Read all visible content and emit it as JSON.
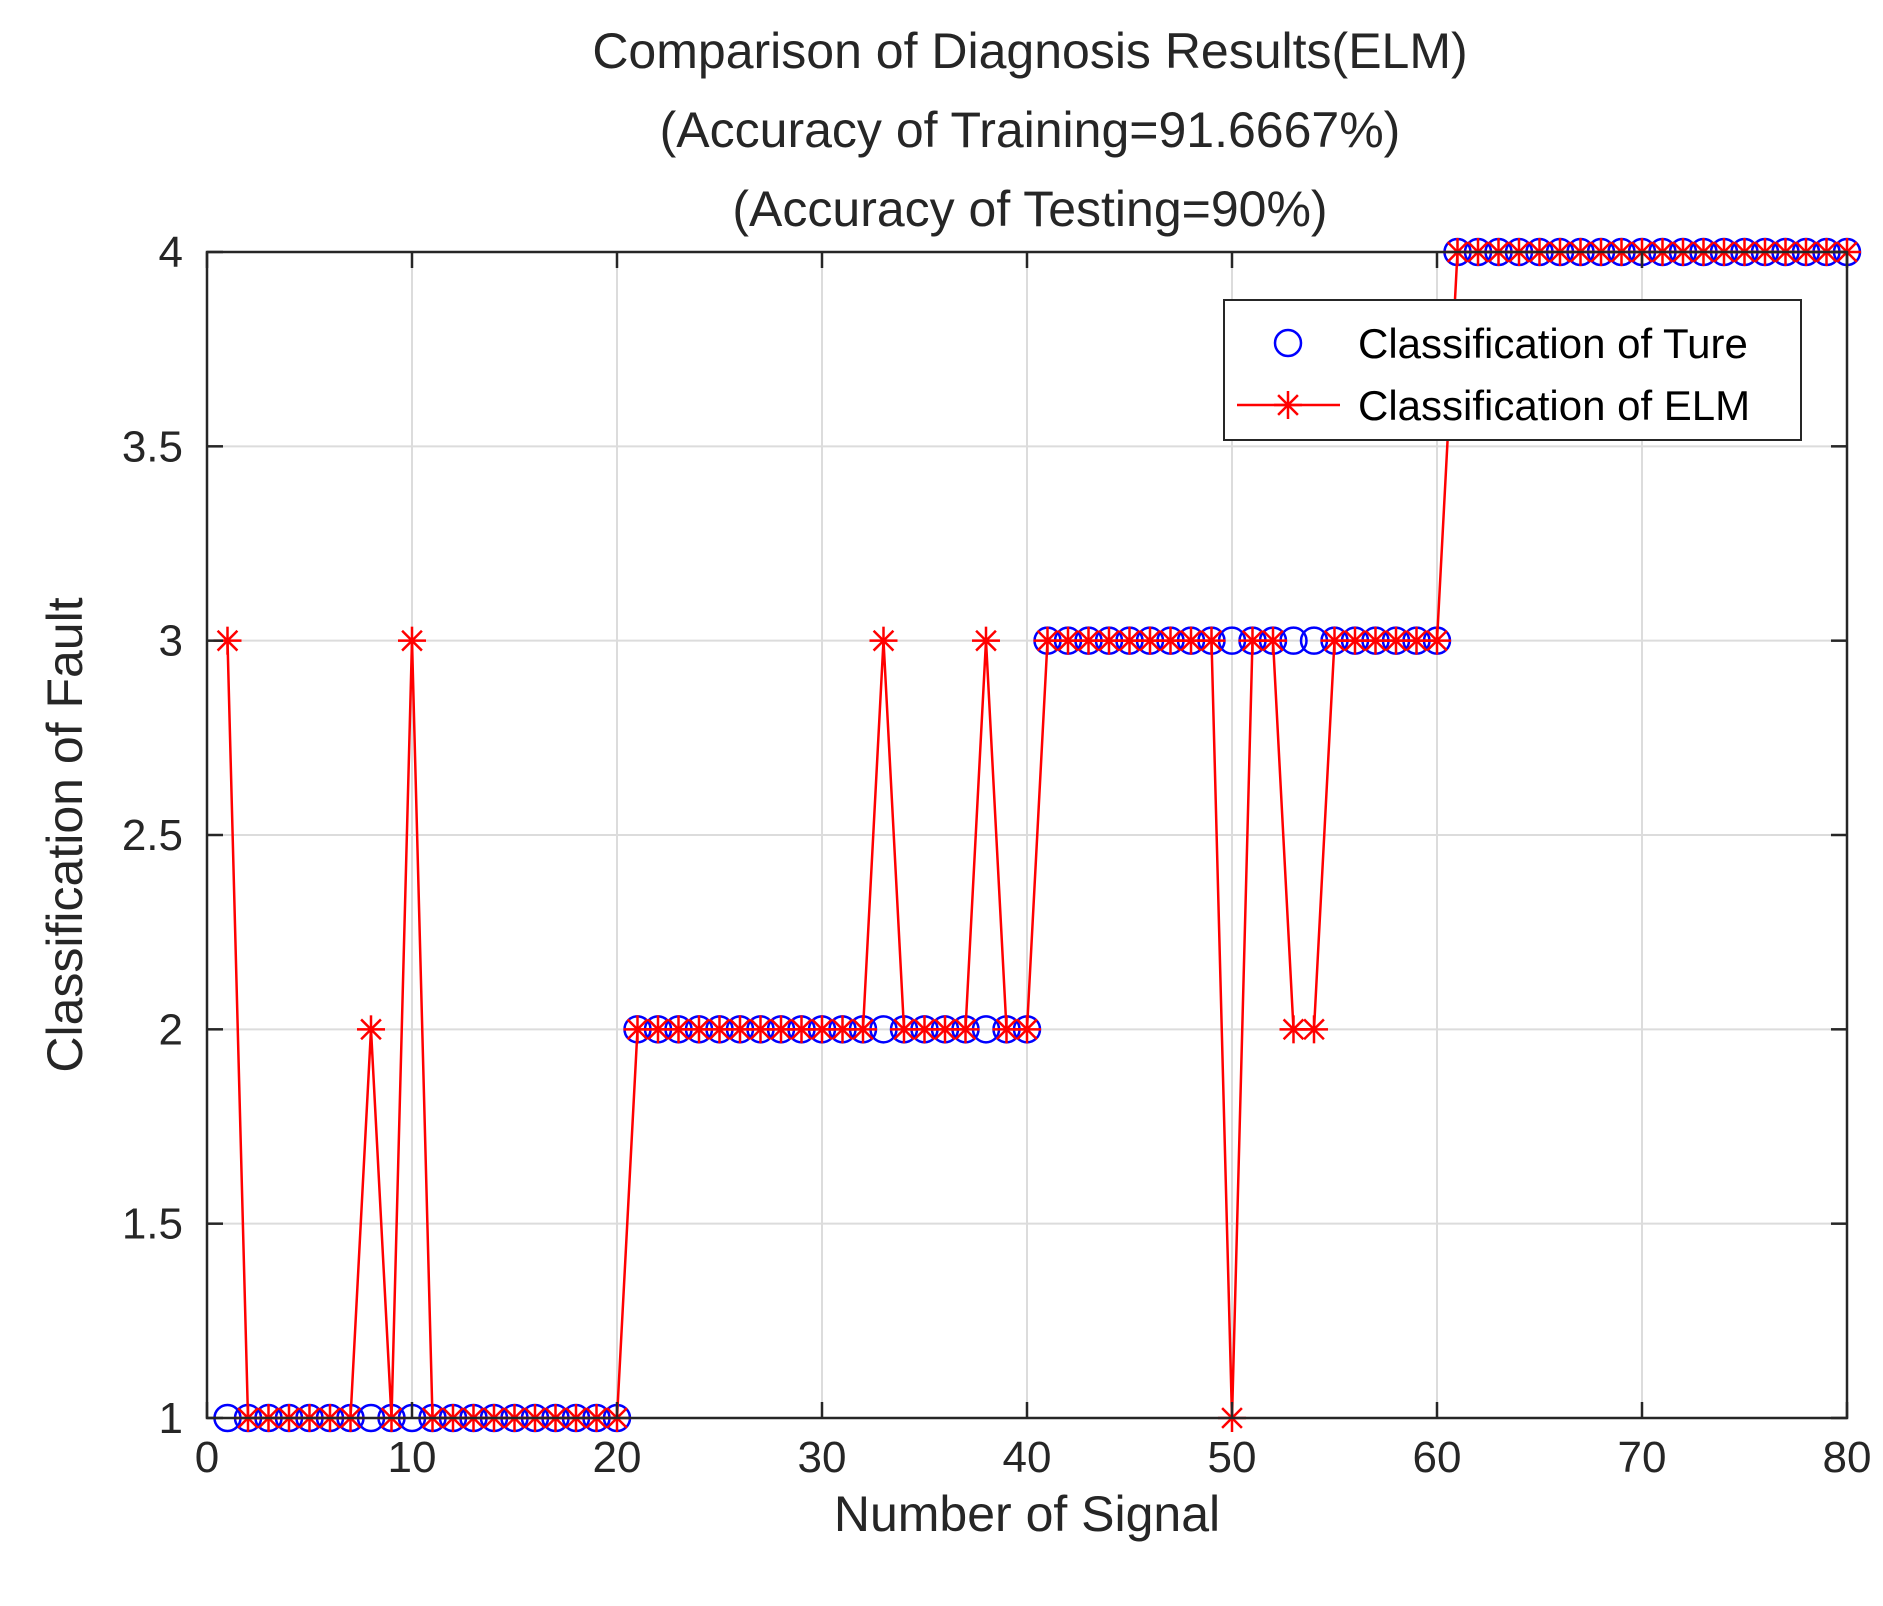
{
  "chart_data": {
    "type": "line",
    "title": [
      "Comparison of Diagnosis Results(ELM)",
      "(Accuracy of Training=91.6667%)",
      "(Accuracy of Testing=90%)"
    ],
    "xlabel": "Number of Signal",
    "ylabel": "Classification of Fault",
    "xlim": [
      0,
      80
    ],
    "ylim": [
      1,
      4
    ],
    "xticks": [
      0,
      10,
      20,
      30,
      40,
      50,
      60,
      70,
      80
    ],
    "yticks": [
      1,
      1.5,
      2,
      2.5,
      3,
      3.5,
      4
    ],
    "xtick_labels": [
      "0",
      "10",
      "20",
      "30",
      "40",
      "50",
      "60",
      "70",
      "80"
    ],
    "ytick_labels": [
      "1",
      "1.5",
      "2",
      "2.5",
      "3",
      "3.5",
      "4"
    ],
    "grid": true,
    "legend_position": "top-right",
    "series": [
      {
        "name": "Classification of Ture",
        "marker": "circle",
        "line": "none",
        "color": "#0000ff",
        "x": [
          1,
          2,
          3,
          4,
          5,
          6,
          7,
          8,
          9,
          10,
          11,
          12,
          13,
          14,
          15,
          16,
          17,
          18,
          19,
          20,
          21,
          22,
          23,
          24,
          25,
          26,
          27,
          28,
          29,
          30,
          31,
          32,
          33,
          34,
          35,
          36,
          37,
          38,
          39,
          40,
          41,
          42,
          43,
          44,
          45,
          46,
          47,
          48,
          49,
          50,
          51,
          52,
          53,
          54,
          55,
          56,
          57,
          58,
          59,
          60,
          61,
          62,
          63,
          64,
          65,
          66,
          67,
          68,
          69,
          70,
          71,
          72,
          73,
          74,
          75,
          76,
          77,
          78,
          79,
          80
        ],
        "values": [
          1,
          1,
          1,
          1,
          1,
          1,
          1,
          1,
          1,
          1,
          1,
          1,
          1,
          1,
          1,
          1,
          1,
          1,
          1,
          1,
          2,
          2,
          2,
          2,
          2,
          2,
          2,
          2,
          2,
          2,
          2,
          2,
          2,
          2,
          2,
          2,
          2,
          2,
          2,
          2,
          3,
          3,
          3,
          3,
          3,
          3,
          3,
          3,
          3,
          3,
          3,
          3,
          3,
          3,
          3,
          3,
          3,
          3,
          3,
          3,
          4,
          4,
          4,
          4,
          4,
          4,
          4,
          4,
          4,
          4,
          4,
          4,
          4,
          4,
          4,
          4,
          4,
          4,
          4,
          4
        ]
      },
      {
        "name": "Classification of ELM",
        "marker": "asterisk",
        "line": "solid",
        "color": "#ff0000",
        "x": [
          1,
          2,
          3,
          4,
          5,
          6,
          7,
          8,
          9,
          10,
          11,
          12,
          13,
          14,
          15,
          16,
          17,
          18,
          19,
          20,
          21,
          22,
          23,
          24,
          25,
          26,
          27,
          28,
          29,
          30,
          31,
          32,
          33,
          34,
          35,
          36,
          37,
          38,
          39,
          40,
          41,
          42,
          43,
          44,
          45,
          46,
          47,
          48,
          49,
          50,
          51,
          52,
          53,
          54,
          55,
          56,
          57,
          58,
          59,
          60,
          61,
          62,
          63,
          64,
          65,
          66,
          67,
          68,
          69,
          70,
          71,
          72,
          73,
          74,
          75,
          76,
          77,
          78,
          79,
          80
        ],
        "values": [
          3,
          1,
          1,
          1,
          1,
          1,
          1,
          2,
          1,
          3,
          1,
          1,
          1,
          1,
          1,
          1,
          1,
          1,
          1,
          1,
          2,
          2,
          2,
          2,
          2,
          2,
          2,
          2,
          2,
          2,
          2,
          2,
          3,
          2,
          2,
          2,
          2,
          3,
          2,
          2,
          3,
          3,
          3,
          3,
          3,
          3,
          3,
          3,
          3,
          1,
          3,
          3,
          2,
          2,
          3,
          3,
          3,
          3,
          3,
          3,
          4,
          4,
          4,
          4,
          4,
          4,
          4,
          4,
          4,
          4,
          4,
          4,
          4,
          4,
          4,
          4,
          4,
          4,
          4,
          4
        ]
      }
    ]
  }
}
